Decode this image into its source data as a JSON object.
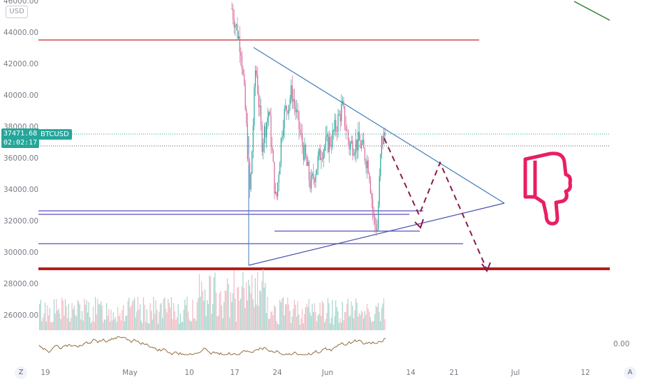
{
  "chart_data": {
    "type": "candlestick",
    "symbol": "BTCUSD",
    "currency": "USD",
    "last_price": "37471.68",
    "countdown": "02:02:17",
    "y_ticks": [
      "46000.00",
      "44000.00",
      "42000.00",
      "40000.00",
      "38000.00",
      "36000.00",
      "34000.00",
      "32000.00",
      "30000.00",
      "28000.00",
      "26000.00"
    ],
    "y_tick_values": [
      46000,
      44000,
      42000,
      40000,
      38000,
      36000,
      34000,
      32000,
      30000,
      28000,
      26000
    ],
    "x_ticks": [
      "19",
      "May",
      "10",
      "17",
      "24",
      "Jun",
      "14",
      "21",
      "Jul",
      "12"
    ],
    "indicator_axis_label": "0.00",
    "levels": [
      43500,
      32500,
      32300,
      30500,
      28800
    ],
    "level_colors": {
      "resistance": "#c62828",
      "support": "#5b4fbf",
      "major_support": "#b71c1c",
      "trend": "#3d7ab8",
      "projection": "#8b1a4a",
      "dotted": "#26a69a"
    },
    "annotations": {
      "thumbs_down_icon": "thumbs-down-icon"
    },
    "scale_button": "Z",
    "auto_button": "A"
  }
}
